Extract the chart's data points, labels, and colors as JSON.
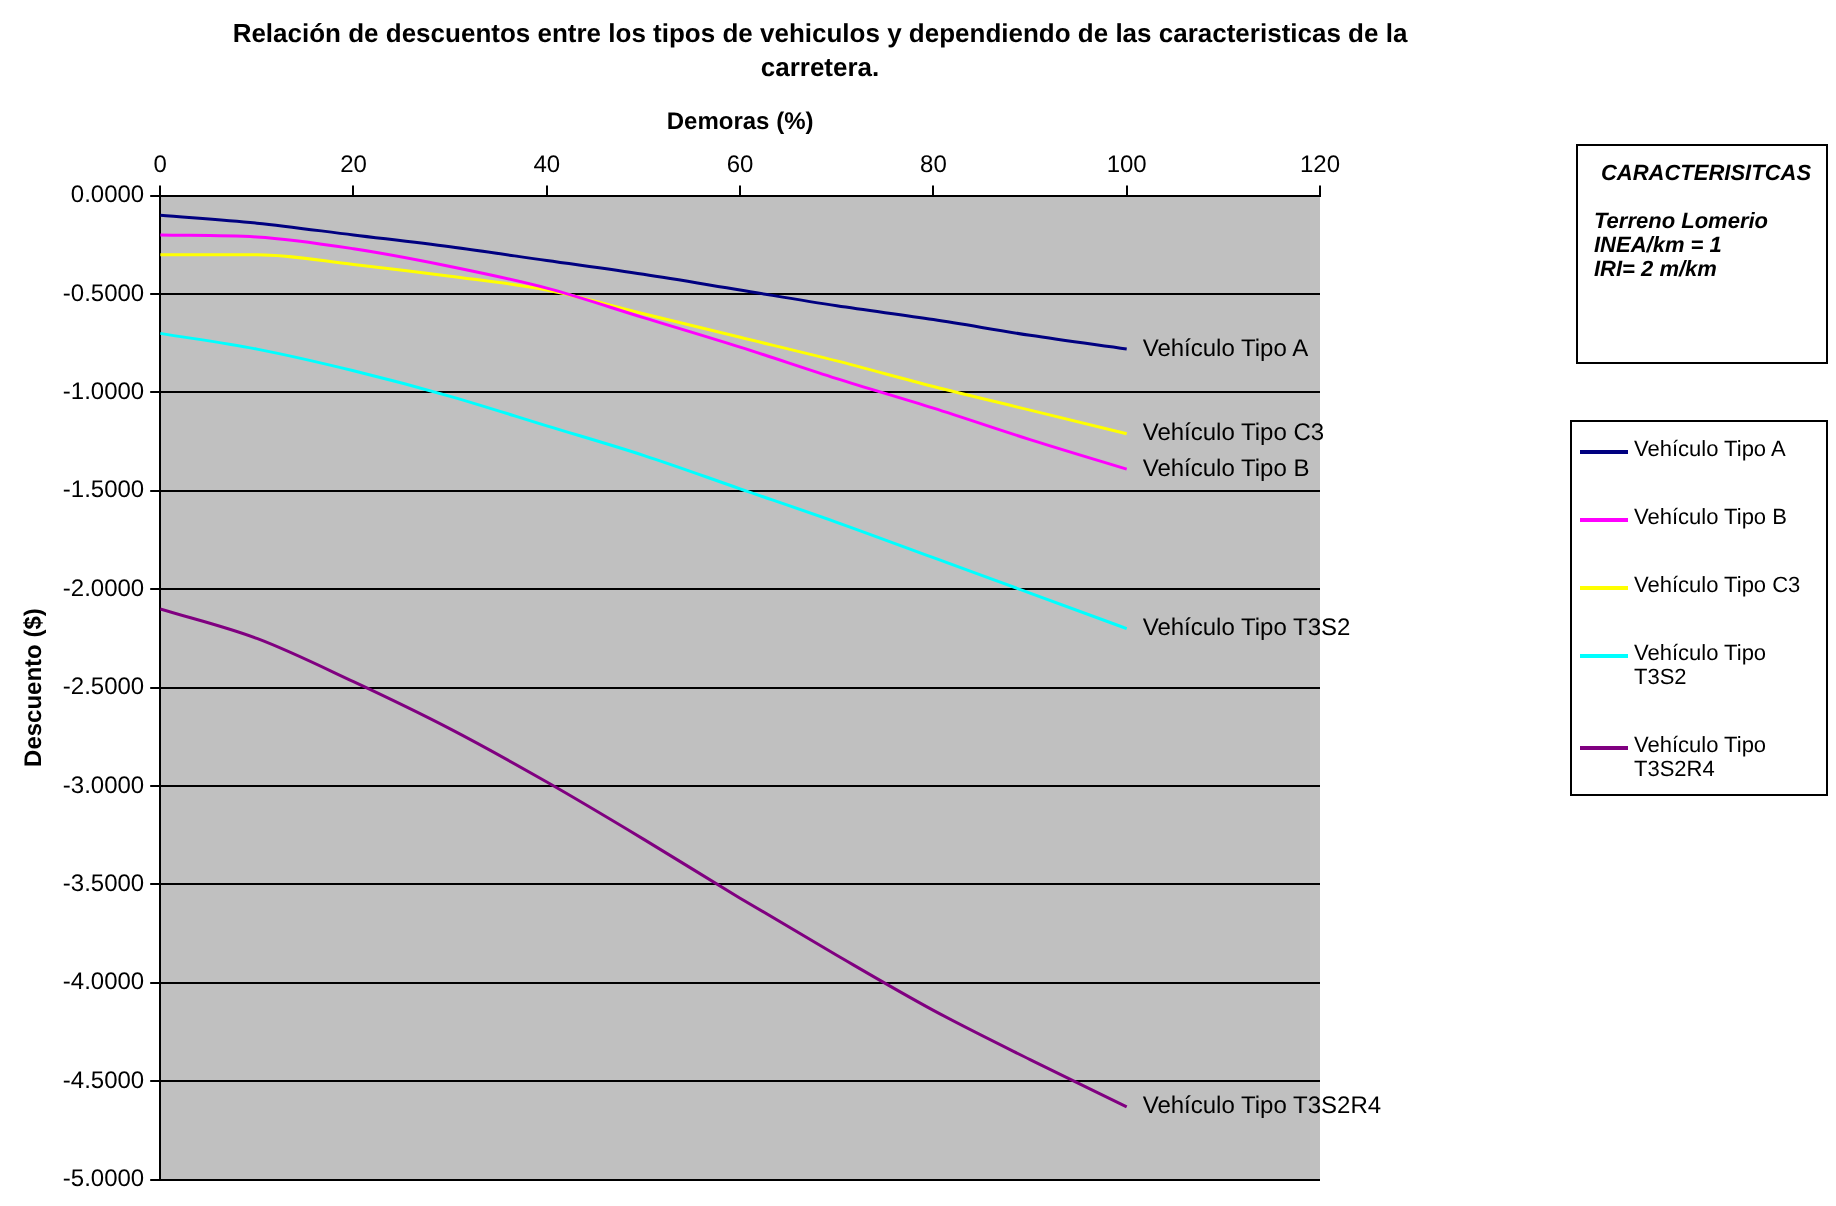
{
  "chart_data": {
    "type": "line",
    "title": "Relación de descuentos entre los tipos de vehiculos y dependiendo de las caracteristicas de la carretera.",
    "xlabel": "Demoras (%)",
    "ylabel": "Descuento ($)",
    "annotations": [
      "CARACTERISITCAS",
      "Terreno Lomerio",
      "INEA/km = 1",
      "IRI= 2 m/km"
    ],
    "x": [
      0,
      10,
      20,
      30,
      40,
      50,
      60,
      70,
      80,
      90,
      100
    ],
    "series": [
      {
        "name": "Vehículo Tipo A",
        "color": "#000080",
        "values": [
          -0.1,
          -0.14,
          -0.2,
          -0.26,
          -0.33,
          -0.4,
          -0.48,
          -0.56,
          -0.63,
          -0.71,
          -0.78
        ]
      },
      {
        "name": "Vehículo Tipo B",
        "color": "#ff00ff",
        "values": [
          -0.2,
          -0.21,
          -0.27,
          -0.36,
          -0.47,
          -0.62,
          -0.77,
          -0.93,
          -1.08,
          -1.24,
          -1.39
        ]
      },
      {
        "name": "Vehículo Tipo C3",
        "color": "#ffff00",
        "values": [
          -0.3,
          -0.3,
          -0.35,
          -0.41,
          -0.48,
          -0.6,
          -0.72,
          -0.84,
          -0.97,
          -1.09,
          -1.21
        ]
      },
      {
        "name": "Vehículo Tipo T3S2",
        "color": "#00ffff",
        "values": [
          -0.7,
          -0.78,
          -0.89,
          -1.02,
          -1.17,
          -1.32,
          -1.49,
          -1.66,
          -1.84,
          -2.02,
          -2.2
        ]
      },
      {
        "name": "Vehículo Tipo T3S2R4",
        "color": "#800080",
        "values": [
          -2.1,
          -2.25,
          -2.47,
          -2.71,
          -2.98,
          -3.27,
          -3.57,
          -3.86,
          -4.14,
          -4.39,
          -4.63
        ]
      }
    ],
    "xlim": [
      0,
      120
    ],
    "xticks": [
      0,
      20,
      40,
      60,
      80,
      100,
      120
    ],
    "ylim": [
      -5,
      0
    ],
    "yticks": [
      {
        "value": 0,
        "label": "0.0000"
      },
      {
        "value": -0.5,
        "label": "-0.5000"
      },
      {
        "value": -1,
        "label": "-1.0000"
      },
      {
        "value": -1.5,
        "label": "-1.5000"
      },
      {
        "value": -2,
        "label": "-2.0000"
      },
      {
        "value": -2.5,
        "label": "-2.5000"
      },
      {
        "value": -3,
        "label": "-3.0000"
      },
      {
        "value": -3.5,
        "label": "-3.5000"
      },
      {
        "value": -4,
        "label": "-4.0000"
      },
      {
        "value": -4.5,
        "label": "-4.5000"
      },
      {
        "value": -5,
        "label": "-5.0000"
      }
    ],
    "grid": "y",
    "legend": "right",
    "marker": "none",
    "line_style": "solid"
  }
}
